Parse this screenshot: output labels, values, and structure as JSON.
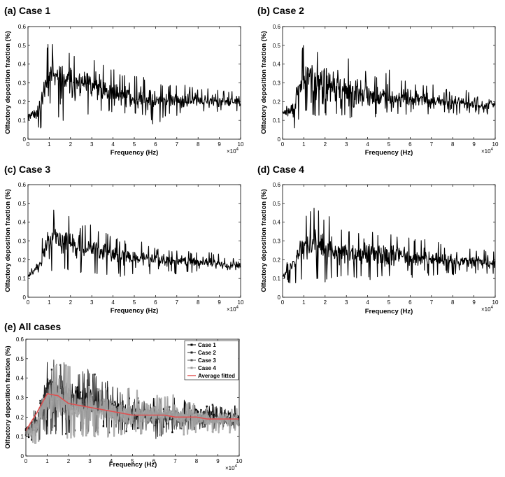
{
  "figure": {
    "panels": [
      {
        "label": "(a) Case 1",
        "ylabel": "Olfactory deposition fraction (%)",
        "xlabel": "Frequency (Hz)",
        "x_multiplier": "×10^4"
      },
      {
        "label": "(b) Case 2",
        "ylabel": "Olfactory deposition fraction (%)",
        "xlabel": "Frequency (Hz)",
        "x_multiplier": "×10^4"
      },
      {
        "label": "(c) Case 3",
        "ylabel": "Olfactory deposition fraction (%)",
        "xlabel": "Frequency (Hz)",
        "x_multiplier": "×10^4"
      },
      {
        "label": "(d) Case 4",
        "ylabel": "Olfactory deposition fraction (%)",
        "xlabel": "Frequency (Hz)",
        "x_multiplier": "×10^4"
      },
      {
        "label": "(e) All cases",
        "ylabel": "Olfactory deposition fraction (%)",
        "xlabel": "Frequency (Hz)",
        "x_multiplier": "×10^4"
      }
    ],
    "legend": [
      "Case 1",
      "Case 2",
      "Case 3",
      "Case 4",
      "Average fitted"
    ]
  },
  "chart_data": [
    {
      "type": "line",
      "title": "(a) Case 1",
      "xlabel": "Frequency (Hz)",
      "ylabel": "Olfactory deposition fraction (%)",
      "x_scale": "×10^4",
      "xlim": [
        0,
        100000
      ],
      "ylim": [
        0,
        0.6
      ],
      "xticks": [
        0,
        1,
        2,
        3,
        4,
        5,
        6,
        7,
        8,
        9,
        10
      ],
      "yticks": [
        0,
        0.1,
        0.2,
        0.3,
        0.4,
        0.5,
        0.6
      ],
      "grid": false,
      "series": [
        {
          "color": "#000000",
          "x": [
            0,
            5000,
            10000,
            15000,
            20000,
            25000,
            30000,
            35000,
            40000,
            45000,
            50000,
            55000,
            60000,
            65000,
            70000,
            75000,
            80000,
            85000,
            90000,
            95000,
            100000
          ],
          "y": [
            0.13,
            0.15,
            0.35,
            0.32,
            0.3,
            0.3,
            0.28,
            0.26,
            0.23,
            0.24,
            0.21,
            0.22,
            0.21,
            0.21,
            0.21,
            0.2,
            0.21,
            0.2,
            0.2,
            0.2,
            0.19
          ],
          "min": [
            0.1,
            0.05,
            0.1,
            0.1,
            0.1,
            0.13,
            0.12,
            0.14,
            0.14,
            0.12,
            0.13,
            0.12,
            0.06,
            0.12,
            0.12,
            0.14,
            0.13,
            0.15,
            0.14,
            0.14,
            0.14
          ],
          "max": [
            0.15,
            0.26,
            0.54,
            0.47,
            0.46,
            0.42,
            0.44,
            0.41,
            0.38,
            0.34,
            0.35,
            0.33,
            0.31,
            0.3,
            0.3,
            0.29,
            0.27,
            0.27,
            0.27,
            0.27,
            0.26
          ]
        }
      ]
    },
    {
      "type": "line",
      "title": "(b) Case 2",
      "xlabel": "Frequency (Hz)",
      "ylabel": "Olfactory deposition fraction (%)",
      "x_scale": "×10^4",
      "xlim": [
        0,
        100000
      ],
      "ylim": [
        0,
        0.6
      ],
      "xticks": [
        0,
        1,
        2,
        3,
        4,
        5,
        6,
        7,
        8,
        9,
        10
      ],
      "yticks": [
        0,
        0.1,
        0.2,
        0.3,
        0.4,
        0.5,
        0.6
      ],
      "grid": false,
      "series": [
        {
          "color": "#000000",
          "x": [
            0,
            5000,
            10000,
            15000,
            20000,
            25000,
            30000,
            35000,
            40000,
            45000,
            50000,
            55000,
            60000,
            65000,
            70000,
            75000,
            80000,
            85000,
            90000,
            95000,
            100000
          ],
          "y": [
            0.14,
            0.16,
            0.33,
            0.33,
            0.3,
            0.27,
            0.27,
            0.26,
            0.23,
            0.22,
            0.22,
            0.22,
            0.21,
            0.21,
            0.2,
            0.2,
            0.2,
            0.19,
            0.19,
            0.18,
            0.18
          ],
          "min": [
            0.12,
            0.05,
            0.14,
            0.12,
            0.12,
            0.12,
            0.11,
            0.11,
            0.1,
            0.12,
            0.13,
            0.13,
            0.13,
            0.13,
            0.13,
            0.13,
            0.13,
            0.13,
            0.13,
            0.13,
            0.13
          ],
          "max": [
            0.16,
            0.25,
            0.53,
            0.48,
            0.49,
            0.43,
            0.45,
            0.4,
            0.36,
            0.33,
            0.37,
            0.33,
            0.31,
            0.3,
            0.3,
            0.28,
            0.28,
            0.27,
            0.26,
            0.26,
            0.25
          ]
        }
      ]
    },
    {
      "type": "line",
      "title": "(c) Case 3",
      "xlabel": "Frequency (Hz)",
      "ylabel": "Olfactory deposition fraction (%)",
      "x_scale": "×10^4",
      "xlim": [
        0,
        100000
      ],
      "ylim": [
        0,
        0.6
      ],
      "xticks": [
        0,
        1,
        2,
        3,
        4,
        5,
        6,
        7,
        8,
        9,
        10
      ],
      "yticks": [
        0,
        0.1,
        0.2,
        0.3,
        0.4,
        0.5,
        0.6
      ],
      "grid": false,
      "series": [
        {
          "color": "#000000",
          "x": [
            0,
            5000,
            10000,
            15000,
            20000,
            25000,
            30000,
            35000,
            40000,
            45000,
            50000,
            55000,
            60000,
            65000,
            70000,
            75000,
            80000,
            85000,
            90000,
            95000,
            100000
          ],
          "y": [
            0.11,
            0.16,
            0.32,
            0.32,
            0.3,
            0.27,
            0.26,
            0.24,
            0.23,
            0.22,
            0.21,
            0.21,
            0.2,
            0.2,
            0.19,
            0.19,
            0.19,
            0.18,
            0.18,
            0.17,
            0.17
          ],
          "min": [
            0.1,
            0.11,
            0.12,
            0.15,
            0.13,
            0.12,
            0.13,
            0.12,
            0.11,
            0.11,
            0.12,
            0.12,
            0.12,
            0.12,
            0.12,
            0.13,
            0.13,
            0.13,
            0.13,
            0.13,
            0.13
          ],
          "max": [
            0.13,
            0.25,
            0.45,
            0.49,
            0.43,
            0.38,
            0.4,
            0.35,
            0.33,
            0.3,
            0.31,
            0.29,
            0.27,
            0.26,
            0.26,
            0.25,
            0.24,
            0.24,
            0.23,
            0.22,
            0.21
          ]
        }
      ]
    },
    {
      "type": "line",
      "title": "(d) Case 4",
      "xlabel": "Frequency (Hz)",
      "ylabel": "Olfactory deposition fraction (%)",
      "x_scale": "×10^4",
      "xlim": [
        0,
        100000
      ],
      "ylim": [
        0,
        0.6
      ],
      "xticks": [
        0,
        1,
        2,
        3,
        4,
        5,
        6,
        7,
        8,
        9,
        10
      ],
      "yticks": [
        0,
        0.1,
        0.2,
        0.3,
        0.4,
        0.5,
        0.6
      ],
      "grid": false,
      "series": [
        {
          "color": "#000000",
          "x": [
            0,
            5000,
            10000,
            15000,
            20000,
            25000,
            30000,
            35000,
            40000,
            45000,
            50000,
            55000,
            60000,
            65000,
            70000,
            75000,
            80000,
            85000,
            90000,
            95000,
            100000
          ],
          "y": [
            0.11,
            0.16,
            0.3,
            0.3,
            0.26,
            0.24,
            0.23,
            0.23,
            0.23,
            0.22,
            0.22,
            0.22,
            0.21,
            0.21,
            0.2,
            0.2,
            0.2,
            0.19,
            0.19,
            0.18,
            0.18
          ],
          "min": [
            0.09,
            0.06,
            0.09,
            0.1,
            0.08,
            0.1,
            0.1,
            0.1,
            0.09,
            0.1,
            0.1,
            0.1,
            0.1,
            0.11,
            0.11,
            0.11,
            0.12,
            0.12,
            0.12,
            0.12,
            0.12
          ],
          "max": [
            0.13,
            0.26,
            0.43,
            0.48,
            0.48,
            0.36,
            0.36,
            0.35,
            0.38,
            0.34,
            0.35,
            0.33,
            0.32,
            0.31,
            0.32,
            0.28,
            0.27,
            0.26,
            0.26,
            0.26,
            0.25
          ]
        }
      ]
    },
    {
      "type": "line",
      "title": "(e) All cases",
      "xlabel": "Frequency (Hz)",
      "ylabel": "Olfactory deposition fraction (%)",
      "x_scale": "×10^4",
      "xlim": [
        0,
        100000
      ],
      "ylim": [
        0,
        0.6
      ],
      "xticks": [
        0,
        1,
        2,
        3,
        4,
        5,
        6,
        7,
        8,
        9,
        10
      ],
      "yticks": [
        0,
        0.1,
        0.2,
        0.3,
        0.4,
        0.5,
        0.6
      ],
      "grid": false,
      "legend_position": "top-right",
      "series": [
        {
          "name": "Case 1",
          "color": "#000000",
          "marker": "square"
        },
        {
          "name": "Case 2",
          "color": "#222222",
          "marker": "square"
        },
        {
          "name": "Case 3",
          "color": "#555555",
          "marker": "square"
        },
        {
          "name": "Case 4",
          "color": "#999999",
          "marker": "square",
          "band_color": "#a6a6a6"
        },
        {
          "name": "Average fitted",
          "color": "#e05050",
          "x": [
            0,
            5000,
            10000,
            15000,
            20000,
            25000,
            30000,
            35000,
            40000,
            45000,
            50000,
            55000,
            60000,
            65000,
            70000,
            75000,
            80000,
            85000,
            90000,
            95000,
            100000
          ],
          "y": [
            0.13,
            0.22,
            0.32,
            0.31,
            0.27,
            0.26,
            0.25,
            0.24,
            0.23,
            0.22,
            0.21,
            0.21,
            0.21,
            0.21,
            0.2,
            0.2,
            0.2,
            0.19,
            0.19,
            0.19,
            0.19
          ]
        }
      ]
    }
  ]
}
